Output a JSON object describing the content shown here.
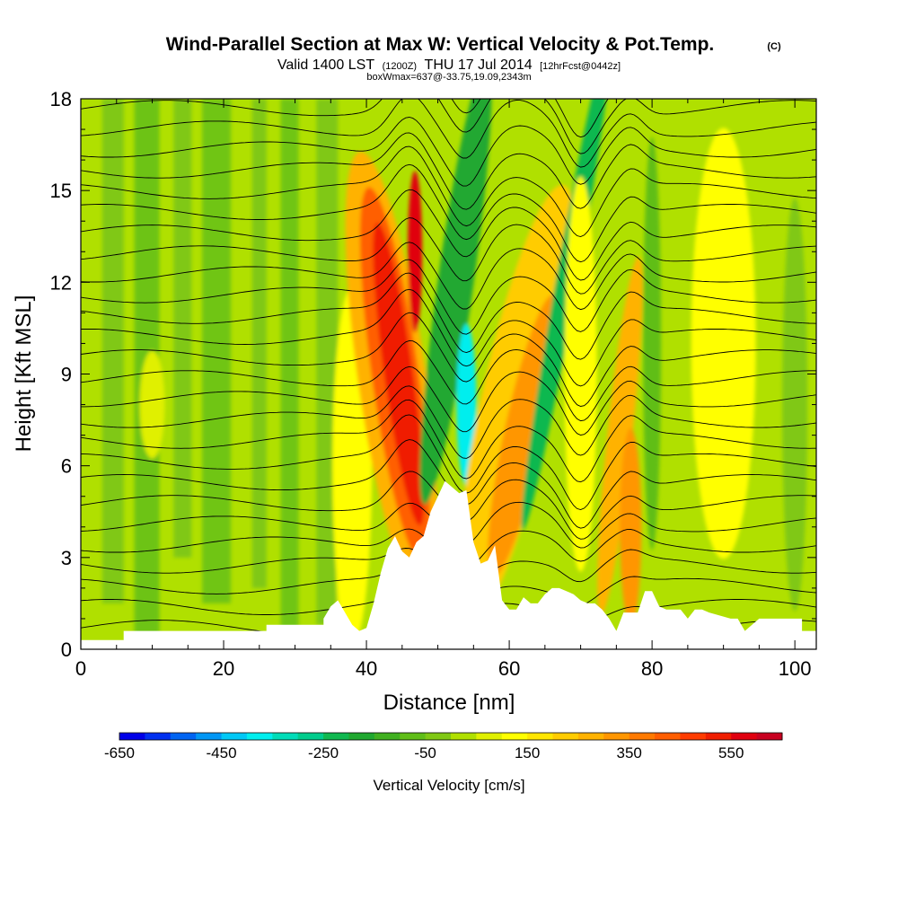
{
  "title": {
    "main": "Wind-Parallel Section at Max W: Vertical Velocity & Pot.Temp.",
    "copyright": "(C)",
    "valid_prefix": "Valid 1400 LST",
    "valid_z": "(1200Z)",
    "valid_date": "THU 17 Jul 2014",
    "forecast": "[12hrFcst@0442z]",
    "box": "boxWmax=637@-33.75,19.09,2343m"
  },
  "chart_data": {
    "type": "heatmap",
    "title": "Wind-Parallel Section at Max W: Vertical Velocity & Pot.Temp.",
    "xlabel": "Distance [nm]",
    "ylabel": "Height [Kft MSL]",
    "xlim": [
      0,
      103
    ],
    "ylim": [
      0,
      18
    ],
    "xticks": [
      0,
      20,
      40,
      60,
      80,
      100
    ],
    "xtick_labels": [
      "0",
      "20",
      "40",
      "60",
      "80",
      "100"
    ],
    "yticks": [
      0,
      3,
      6,
      9,
      12,
      15,
      18
    ],
    "ytick_labels": [
      "0",
      "3",
      "6",
      "9",
      "12",
      "15",
      "18"
    ],
    "colorbar": {
      "label": "Vertical Velocity [cm/s]",
      "levels": [
        -650,
        -600,
        -550,
        -500,
        -450,
        -400,
        -350,
        -300,
        -250,
        -200,
        -150,
        -100,
        -50,
        0,
        50,
        100,
        150,
        200,
        250,
        300,
        350,
        400,
        450,
        500,
        550,
        600,
        650
      ],
      "colors": [
        "#0000e8",
        "#0030f0",
        "#0064f2",
        "#0096f4",
        "#00c8f6",
        "#00eeee",
        "#00dcb8",
        "#00cc8c",
        "#10b850",
        "#20a830",
        "#40b020",
        "#60be18",
        "#80c814",
        "#b0e000",
        "#e0f000",
        "#ffff00",
        "#ffe600",
        "#ffcc00",
        "#ffb200",
        "#ff9600",
        "#ff7a00",
        "#ff5e00",
        "#ff3c00",
        "#f01e00",
        "#e00010",
        "#c80020"
      ],
      "tick_values": [
        -650,
        -450,
        -250,
        -50,
        150,
        350,
        550
      ],
      "tick_labels": [
        "-650",
        "-450",
        "-250",
        "-50",
        "150",
        "350",
        "550"
      ]
    },
    "w_max_cm_s": 637,
    "terrain_profile": {
      "distance_nm": [
        0,
        6,
        6,
        26,
        26,
        34,
        34,
        35,
        36,
        38,
        39,
        40,
        41,
        42,
        43,
        44,
        45,
        46,
        47,
        48,
        49,
        50,
        51,
        52,
        53,
        54,
        55,
        56,
        57,
        58,
        59,
        60,
        61,
        62,
        63,
        64,
        65,
        66,
        67,
        69,
        70,
        71,
        72,
        73,
        74,
        75,
        76,
        77,
        78,
        79,
        80,
        81,
        82,
        84,
        85,
        86,
        87,
        88,
        91,
        92,
        93,
        95,
        96,
        101,
        101,
        103
      ],
      "height_kft": [
        0.3,
        0.3,
        0.6,
        0.6,
        0.8,
        0.8,
        1.0,
        1.4,
        1.6,
        0.8,
        0.6,
        0.7,
        1.5,
        2.5,
        3.3,
        3.7,
        3.2,
        3.0,
        3.5,
        3.7,
        4.5,
        5.0,
        5.5,
        5.3,
        5.1,
        5.2,
        3.5,
        2.8,
        2.9,
        3.4,
        1.6,
        1.3,
        1.3,
        1.7,
        1.5,
        1.5,
        1.8,
        2.0,
        2.0,
        1.8,
        1.6,
        1.5,
        1.5,
        1.3,
        1.0,
        0.6,
        1.2,
        1.2,
        1.2,
        1.9,
        1.9,
        1.4,
        1.3,
        1.3,
        1.0,
        1.3,
        1.3,
        1.2,
        1.0,
        1.0,
        0.6,
        1.0,
        1.0,
        1.0,
        0.6,
        0.6
      ]
    },
    "isentrope_count": 27
  },
  "colors": {
    "background": "#ffffff",
    "terrain": "#ffffff",
    "isentrope": "#000000"
  }
}
